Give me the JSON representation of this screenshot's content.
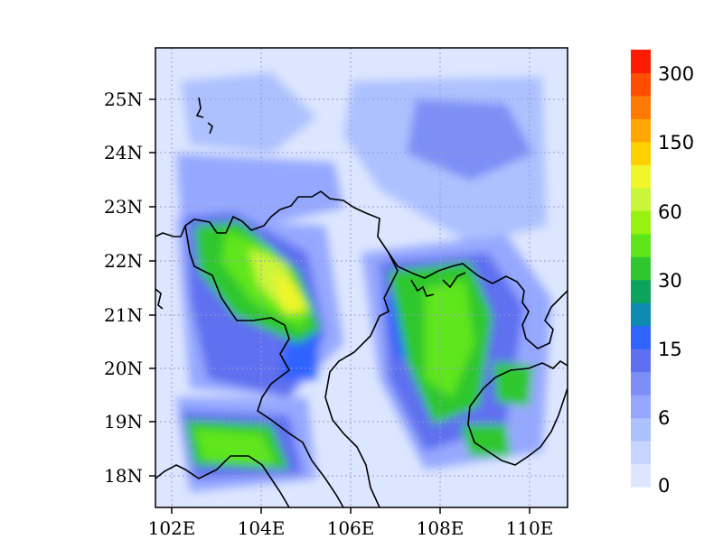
{
  "map": {
    "lon_ticks": [
      "102E",
      "104E",
      "106E",
      "108E",
      "110E"
    ],
    "lat_ticks": [
      "25N",
      "24N",
      "23N",
      "22N",
      "21N",
      "20N",
      "19N",
      "18N"
    ]
  },
  "colorbar": {
    "labels": [
      "0",
      "6",
      "15",
      "30",
      "60",
      "150",
      "300"
    ],
    "colors": [
      "#dde6ff",
      "#c6d5ff",
      "#adc1ff",
      "#95a8ff",
      "#7d8ff5",
      "#5e6ff0",
      "#2f64ff",
      "#0e8ab0",
      "#0aa45c",
      "#2fc72f",
      "#5ee61b",
      "#98f20f",
      "#c9f53a",
      "#f0f52c",
      "#ffd000",
      "#ffa600",
      "#ff7a00",
      "#ff4d00",
      "#ff1a00"
    ]
  },
  "colors": {
    "background": "#ffffff",
    "coast": "#000000"
  }
}
